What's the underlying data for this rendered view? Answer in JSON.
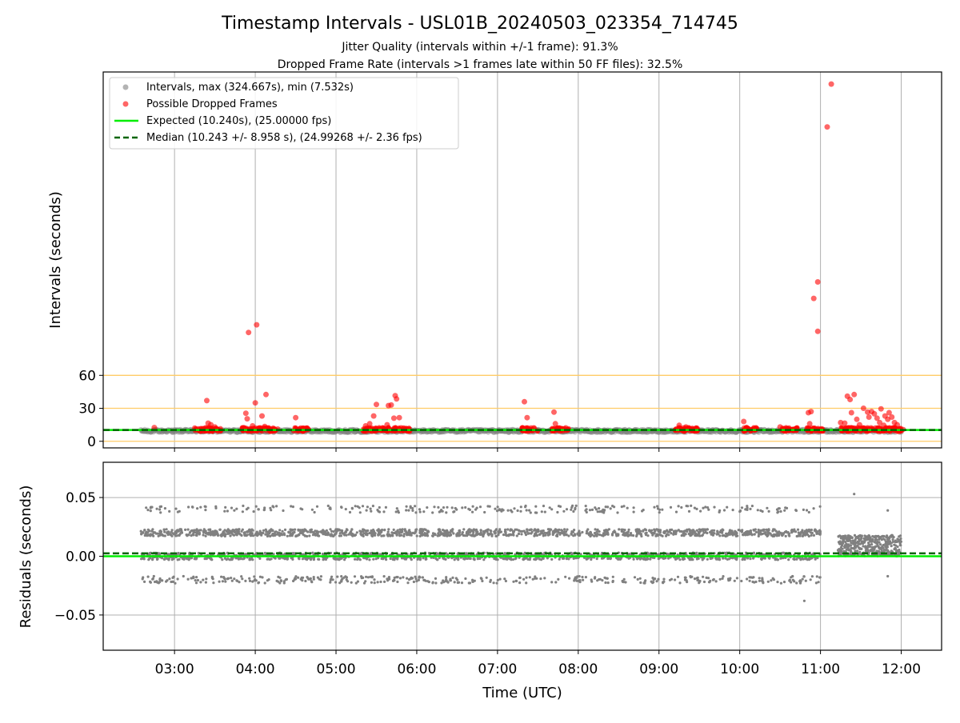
{
  "title": "Timestamp Intervals - USL01B_20240503_023354_714745",
  "subtitle_1": "Jitter Quality (intervals within +/-1 frame): 91.3%",
  "subtitle_2": "Dropped Frame Rate (intervals >1 frames late within 50 FF files): 32.5%",
  "colors": {
    "intervals": "#808080",
    "dropped": "#ff0000",
    "expected": "#00ee00",
    "median": "#006400",
    "threshold": "#ffcc66",
    "grid": "#b0b0b0"
  },
  "chart_data": [
    {
      "type": "scatter",
      "ylabel": "Intervals (seconds)",
      "xlim": [
        "02:07",
        "12:30"
      ],
      "ylim": [
        -6,
        336
      ],
      "yticks": [
        0,
        30,
        60
      ],
      "yticklabels": [
        "0",
        "30",
        "60"
      ],
      "xgrid_times": [
        "03:00",
        "04:00",
        "05:00",
        "06:00",
        "07:00",
        "08:00",
        "09:00",
        "10:00",
        "11:00",
        "12:00"
      ],
      "threshold_lines": [
        0,
        30,
        60
      ],
      "expected": 10.24,
      "median": 10.243,
      "intervals_time_range": [
        "02:35",
        "12:00"
      ],
      "intervals_typical_range": [
        7.532,
        12.5
      ],
      "legend": {
        "placement": "upper-left",
        "entries": [
          "Intervals, max (324.667s), min (7.532s)",
          "Possible Dropped Frames",
          "Expected (10.240s), (25.00000 fps)",
          "Median (10.243 +/- 8.958 s), (24.99268 +/- 2.36 fps)"
        ]
      },
      "dropped_points": [
        [
          "02:45",
          12.5
        ],
        [
          "03:15",
          12.0
        ],
        [
          "03:20",
          11.5
        ],
        [
          "03:24",
          37.0
        ],
        [
          "03:25",
          16.5
        ],
        [
          "03:27",
          15.0
        ],
        [
          "03:30",
          13.0
        ],
        [
          "03:53",
          25.5
        ],
        [
          "03:54",
          20.5
        ],
        [
          "03:55",
          99.0
        ],
        [
          "03:58",
          14.0
        ],
        [
          "04:00",
          35.0
        ],
        [
          "04:01",
          106.0
        ],
        [
          "04:05",
          23.0
        ],
        [
          "04:07",
          13.5
        ],
        [
          "04:08",
          42.5
        ],
        [
          "04:10",
          11.5
        ],
        [
          "04:30",
          21.5
        ],
        [
          "04:33",
          11.0
        ],
        [
          "05:22",
          14.0
        ],
        [
          "05:25",
          16.0
        ],
        [
          "05:28",
          23.0
        ],
        [
          "05:30",
          33.5
        ],
        [
          "05:35",
          12.0
        ],
        [
          "05:38",
          15.0
        ],
        [
          "05:39",
          32.5
        ],
        [
          "05:41",
          33.0
        ],
        [
          "05:43",
          21.0
        ],
        [
          "05:44",
          41.5
        ],
        [
          "05:45",
          38.5
        ],
        [
          "05:47",
          21.5
        ],
        [
          "05:50",
          12.0
        ],
        [
          "07:20",
          36.0
        ],
        [
          "07:22",
          21.5
        ],
        [
          "07:42",
          26.5
        ],
        [
          "07:43",
          16.0
        ],
        [
          "07:45",
          11.5
        ],
        [
          "09:15",
          14.5
        ],
        [
          "09:20",
          13.0
        ],
        [
          "09:25",
          11.5
        ],
        [
          "10:03",
          18.0
        ],
        [
          "10:05",
          12.5
        ],
        [
          "10:30",
          13.0
        ],
        [
          "10:33",
          11.0
        ],
        [
          "10:50",
          12.0
        ],
        [
          "10:51",
          26.0
        ],
        [
          "10:52",
          16.0
        ],
        [
          "10:53",
          27.0
        ],
        [
          "10:55",
          11.5
        ],
        [
          "10:55",
          130.0
        ],
        [
          "10:58",
          100.0
        ],
        [
          "10:58",
          145.0
        ],
        [
          "11:05",
          286.0
        ],
        [
          "11:08",
          325.0
        ],
        [
          "11:15",
          17.0
        ],
        [
          "11:18",
          16.5
        ],
        [
          "11:20",
          41.0
        ],
        [
          "11:22",
          38.0
        ],
        [
          "11:23",
          26.0
        ],
        [
          "11:25",
          42.5
        ],
        [
          "11:27",
          20.0
        ],
        [
          "11:29",
          15.0
        ],
        [
          "11:32",
          30.0
        ],
        [
          "11:35",
          26.5
        ],
        [
          "11:36",
          22.0
        ],
        [
          "11:38",
          27.0
        ],
        [
          "11:40",
          25.0
        ],
        [
          "11:42",
          21.0
        ],
        [
          "11:44",
          17.0
        ],
        [
          "11:45",
          29.5
        ],
        [
          "11:47",
          14.5
        ],
        [
          "11:48",
          23.0
        ],
        [
          "11:50",
          20.0
        ],
        [
          "11:51",
          26.0
        ],
        [
          "11:53",
          22.0
        ],
        [
          "11:55",
          17.0
        ],
        [
          "11:57",
          15.0
        ],
        [
          "11:59",
          11.5
        ]
      ],
      "dropped_clusters": [
        [
          "03:15",
          "03:35"
        ],
        [
          "03:50",
          "04:17"
        ],
        [
          "04:28",
          "04:40"
        ],
        [
          "05:20",
          "05:55"
        ],
        [
          "07:18",
          "07:30"
        ],
        [
          "07:40",
          "07:53"
        ],
        [
          "09:12",
          "09:30"
        ],
        [
          "10:02",
          "10:13"
        ],
        [
          "10:30",
          "10:43"
        ],
        [
          "10:50",
          "11:02"
        ],
        [
          "11:15",
          "12:02"
        ]
      ]
    },
    {
      "type": "scatter",
      "xlabel": "Time (UTC)",
      "ylabel": "Residuals (seconds)",
      "xlim": [
        "02:07",
        "12:30"
      ],
      "ylim": [
        -0.08,
        0.08
      ],
      "yticks": [
        -0.05,
        0,
        0.05
      ],
      "yticklabels": [
        "−0.05",
        "0.00",
        "0.05"
      ],
      "xticklabels": [
        "03:00",
        "04:00",
        "05:00",
        "06:00",
        "07:00",
        "08:00",
        "09:00",
        "10:00",
        "11:00",
        "12:00"
      ],
      "expected_residual": 0.0,
      "median_residual": 0.0025,
      "residual_bands": [
        0.04,
        0.02,
        0.0,
        -0.02
      ],
      "main_time_range": [
        "02:35",
        "11:00"
      ],
      "late_time_range": [
        "11:13",
        "12:00"
      ],
      "late_band": [
        0.0,
        0.018
      ],
      "outliers": [
        [
          "11:25",
          0.053
        ],
        [
          "10:48",
          -0.038
        ],
        [
          "11:50",
          0.039
        ],
        [
          "11:50",
          -0.017
        ]
      ]
    }
  ]
}
